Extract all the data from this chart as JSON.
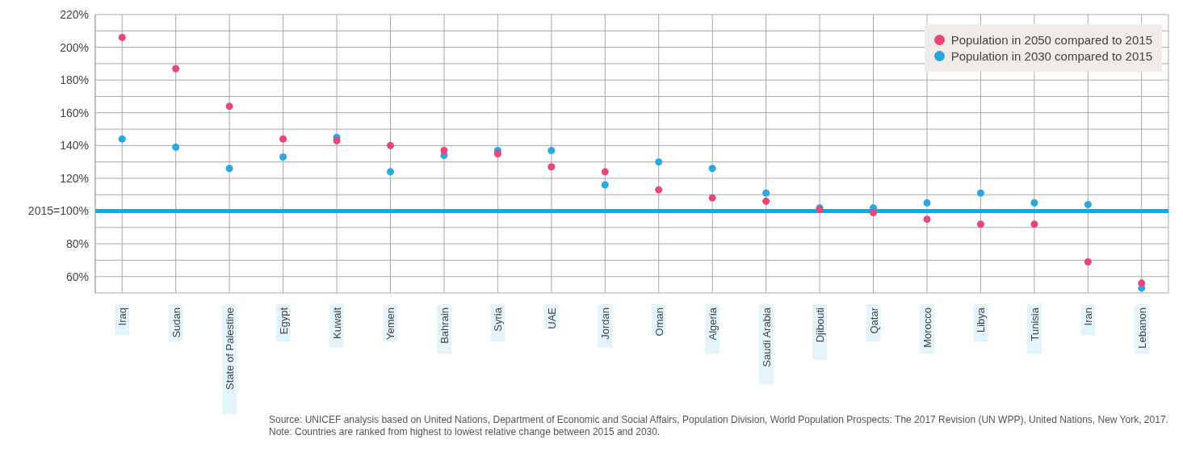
{
  "chart_data": {
    "type": "scatter",
    "categories": [
      "Iraq",
      "Sudan",
      "State of Palestine",
      "Egypt",
      "Kuwait",
      "Yemen",
      "Bahrain",
      "Syria",
      "UAE",
      "Jordan",
      "Oman",
      "Algeria",
      "Saudi Arabia",
      "Djibouti",
      "Qatar",
      "Morocco",
      "Libya",
      "Tunisia",
      "Iran",
      "Lebanon"
    ],
    "series": [
      {
        "name": "Population in 2030 compared to 2015",
        "color": "#29a9e0",
        "values": [
          144,
          139,
          126,
          133,
          145,
          124,
          134,
          137,
          137,
          116,
          130,
          126,
          111,
          102,
          102,
          105,
          111,
          105,
          104,
          53
        ]
      },
      {
        "name": "Population in 2050 compared to 2015",
        "color": "#e8467c",
        "values": [
          206,
          187,
          164,
          144,
          143,
          140,
          137,
          135,
          127,
          124,
          113,
          108,
          106,
          101,
          99,
          95,
          92,
          92,
          69,
          56
        ]
      }
    ],
    "ylim": [
      50,
      220
    ],
    "yticks": [
      {
        "value": 50,
        "label": null
      },
      {
        "value": 60,
        "label": "60%"
      },
      {
        "value": 70,
        "label": null
      },
      {
        "value": 80,
        "label": "80%"
      },
      {
        "value": 90,
        "label": null
      },
      {
        "value": 100,
        "label": "2015=100%"
      },
      {
        "value": 110,
        "label": null
      },
      {
        "value": 120,
        "label": "120%"
      },
      {
        "value": 130,
        "label": null
      },
      {
        "value": 140,
        "label": "140%"
      },
      {
        "value": 150,
        "label": null
      },
      {
        "value": 160,
        "label": "160%"
      },
      {
        "value": 170,
        "label": null
      },
      {
        "value": 180,
        "label": "180%"
      },
      {
        "value": 190,
        "label": null
      },
      {
        "value": 200,
        "label": "200%"
      },
      {
        "value": 210,
        "label": null
      },
      {
        "value": 220,
        "label": "220%"
      }
    ],
    "ref_lines": [
      {
        "axis": "y",
        "value": 100,
        "color": "#00aeef"
      }
    ],
    "grid": true,
    "legend": "top right",
    "marker": "circle",
    "annotations": [
      "Source: UNICEF analysis based on United Nations, Department of Economic and Social Affairs, Population Division, World Population Prospects: The 2017 Revision (UN WPP), United Nations, New York, 2017. Note: Countries are ranked from highest to lowest relative change between 2015 and 2030."
    ]
  }
}
